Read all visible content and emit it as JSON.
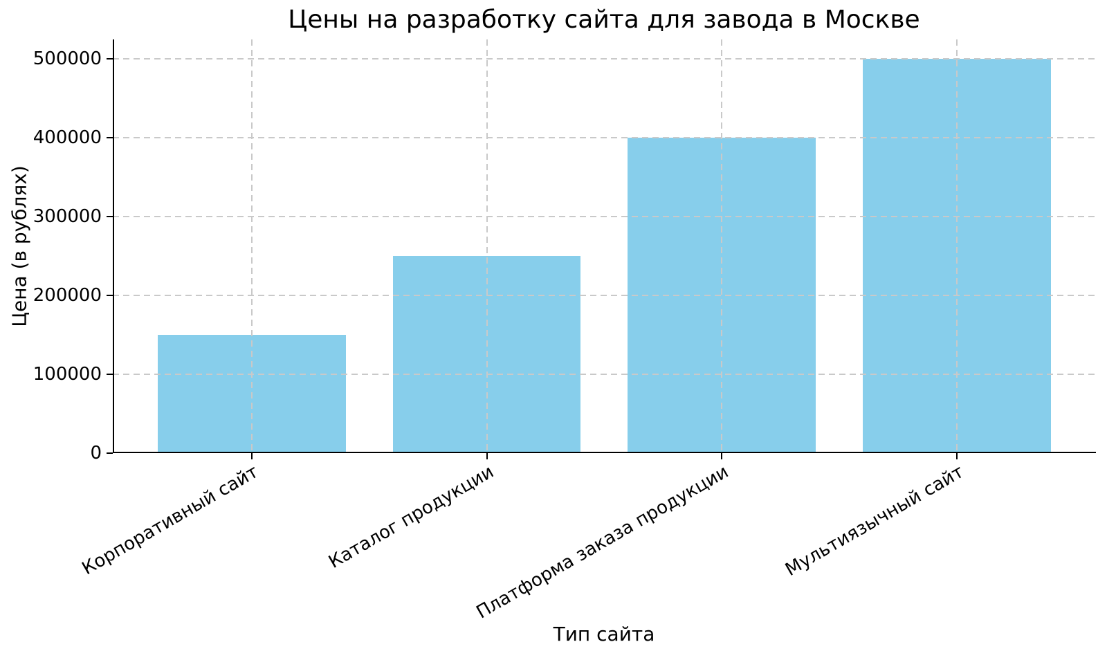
{
  "chart_data": {
    "type": "bar",
    "title": "Цены на разработку сайта для завода в Москве",
    "xlabel": "Тип сайта",
    "ylabel": "Цена (в рублях)",
    "categories": [
      "Корпоративный сайт",
      "Каталог продукции",
      "Платформа заказа продукции",
      "Мультиязычный сайт"
    ],
    "values": [
      150000,
      250000,
      400000,
      500000
    ],
    "yticks": [
      0,
      100000,
      200000,
      300000,
      400000,
      500000
    ],
    "ylim": [
      0,
      525000
    ],
    "bar_color": "#87CEEB",
    "grid": {
      "visible": true,
      "style": "dashed",
      "color": "#c9c9c9",
      "drawn_above_bars": true
    },
    "x_tick_rotation_deg": 30,
    "legend": false
  }
}
